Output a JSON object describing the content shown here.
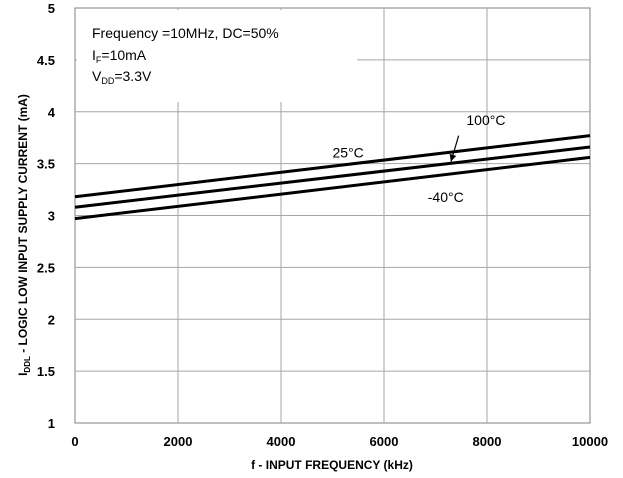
{
  "chart_data": {
    "type": "line",
    "xlabel": "f - INPUT FREQUENCY (kHz)",
    "ylabel_main": "I",
    "ylabel_sub": "DDL",
    "ylabel_rest": " - LOGIC LOW INPUT SUPPLY CURRENT (mA)",
    "xlim": [
      0,
      10000
    ],
    "ylim": [
      1,
      5
    ],
    "x_ticks": [
      "0",
      "2000",
      "4000",
      "6000",
      "8000",
      "10000"
    ],
    "y_ticks": [
      "1",
      "1.5",
      "2",
      "2.5",
      "3",
      "3.5",
      "4",
      "4.5",
      "5"
    ],
    "x_tick_values": [
      0,
      2000,
      4000,
      6000,
      8000,
      10000
    ],
    "y_tick_values": [
      1,
      1.5,
      2,
      2.5,
      3,
      3.5,
      4,
      4.5,
      5
    ],
    "grid": true,
    "conditions": [
      {
        "main": "Frequency =10MHz, DC=50%",
        "sub": "",
        "rest": ""
      },
      {
        "main": "I",
        "sub": "F",
        "rest": "=10mA"
      },
      {
        "main": "V",
        "sub": "DD",
        "rest": "=3.3V"
      }
    ],
    "series": [
      {
        "name": "100°C",
        "x": [
          0,
          10000
        ],
        "y": [
          3.18,
          3.77
        ]
      },
      {
        "name": "25°C",
        "x": [
          0,
          10000
        ],
        "y": [
          3.08,
          3.66
        ]
      },
      {
        "name": "-40°C",
        "x": [
          0,
          10000
        ],
        "y": [
          2.97,
          3.56
        ]
      }
    ],
    "series_labels": [
      {
        "text": "100°C",
        "at": [
          7600,
          3.87
        ]
      },
      {
        "text": "25°C",
        "at": [
          5000,
          3.56
        ]
      },
      {
        "text": "-40°C",
        "at": [
          6850,
          3.13
        ]
      }
    ],
    "arrow": {
      "from": [
        7450,
        3.77
      ],
      "to": [
        7300,
        3.52
      ]
    }
  }
}
